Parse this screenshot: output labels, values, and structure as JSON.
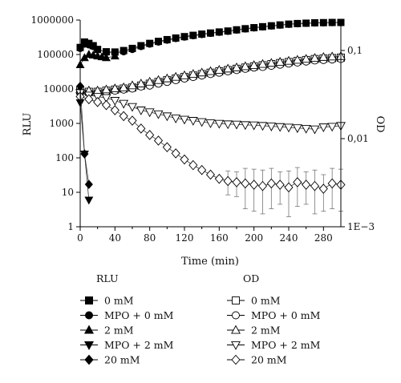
{
  "chart_data": {
    "type": "scatter",
    "title": "",
    "xlabel": "Time (min)",
    "ylabel": "RLU",
    "y2label": "OD",
    "xlim": [
      0,
      300
    ],
    "ylim": [
      1,
      1000000
    ],
    "y2lim": [
      0.001,
      0.2
    ],
    "yscale": "log",
    "y2scale": "log",
    "xticks": [
      "0",
      "40",
      "80",
      "120",
      "160",
      "200",
      "240",
      "280"
    ],
    "yticks": [
      "1",
      "10",
      "100",
      "1000",
      "10000",
      "100000",
      "1000000"
    ],
    "y2ticks": [
      "1E−3",
      "0,01",
      "0,1"
    ],
    "legend_placement": "below",
    "legend_groups": [
      "RLU",
      "OD"
    ],
    "series": [
      {
        "name": "0 mM",
        "group": "RLU",
        "axis": "left",
        "marker": "square",
        "filled": true,
        "x": [
          0,
          5,
          10,
          15,
          20,
          30,
          40,
          50,
          60,
          70,
          80,
          90,
          100,
          110,
          120,
          130,
          140,
          150,
          160,
          170,
          180,
          190,
          200,
          210,
          220,
          230,
          240,
          250,
          260,
          270,
          280,
          290,
          300
        ],
        "y": [
          160000,
          230000,
          210000,
          180000,
          140000,
          120000,
          118000,
          130000,
          150000,
          180000,
          210000,
          240000,
          270000,
          300000,
          330000,
          360000,
          390000,
          420000,
          450000,
          480000,
          520000,
          560000,
          600000,
          640000,
          680000,
          720000,
          760000,
          790000,
          810000,
          830000,
          840000,
          850000,
          850000
        ]
      },
      {
        "name": "MPO + 0 mM",
        "group": "RLU",
        "axis": "left",
        "marker": "circle",
        "filled": true,
        "x": [
          0,
          5,
          10,
          15,
          20,
          30,
          40,
          50,
          60,
          70,
          80,
          90,
          100,
          110,
          120,
          130,
          140,
          150,
          160,
          170,
          180,
          190,
          200,
          210,
          220,
          230,
          240,
          250,
          260,
          270,
          280,
          290,
          300
        ],
        "y": [
          150000,
          200000,
          190000,
          170000,
          140000,
          115000,
          110000,
          120000,
          140000,
          170000,
          200000,
          230000,
          260000,
          290000,
          320000,
          350000,
          380000,
          410000,
          440000,
          470000,
          510000,
          550000,
          590000,
          630000,
          670000,
          710000,
          750000,
          780000,
          800000,
          820000,
          830000,
          840000,
          840000
        ]
      },
      {
        "name": "2 mM",
        "group": "RLU",
        "axis": "left",
        "marker": "triangle-up",
        "filled": true,
        "x": [
          0,
          5,
          10,
          15,
          20,
          25,
          30,
          40
        ],
        "y": [
          50000,
          80000,
          100000,
          95000,
          90000,
          85000,
          80000,
          90000
        ]
      },
      {
        "name": "MPO + 2 mM",
        "group": "RLU",
        "axis": "left",
        "marker": "triangle-down",
        "filled": true,
        "x": [
          0,
          5,
          10
        ],
        "y": [
          4000,
          130,
          6
        ]
      },
      {
        "name": "20 mM",
        "group": "RLU",
        "axis": "left",
        "marker": "diamond",
        "filled": true,
        "x": [
          0,
          5,
          10
        ],
        "y": [
          12000,
          130,
          17
        ]
      },
      {
        "name": "0 mM",
        "group": "OD",
        "axis": "right",
        "marker": "square",
        "filled": false,
        "x": [
          0,
          10,
          20,
          30,
          40,
          50,
          60,
          70,
          80,
          90,
          100,
          110,
          120,
          130,
          140,
          150,
          160,
          170,
          180,
          190,
          200,
          210,
          220,
          230,
          240,
          250,
          260,
          270,
          280,
          290,
          300
        ],
        "y": [
          0.035,
          0.034,
          0.034,
          0.035,
          0.036,
          0.037,
          0.038,
          0.04,
          0.042,
          0.044,
          0.046,
          0.048,
          0.05,
          0.052,
          0.054,
          0.056,
          0.058,
          0.06,
          0.062,
          0.064,
          0.066,
          0.068,
          0.07,
          0.072,
          0.074,
          0.076,
          0.078,
          0.08,
          0.081,
          0.082,
          0.083
        ]
      },
      {
        "name": "MPO + 0 mM",
        "group": "OD",
        "axis": "right",
        "marker": "circle",
        "filled": false,
        "x": [
          0,
          10,
          20,
          30,
          40,
          50,
          60,
          70,
          80,
          90,
          100,
          110,
          120,
          130,
          140,
          150,
          160,
          170,
          180,
          190,
          200,
          210,
          220,
          230,
          240,
          250,
          260,
          270,
          280,
          290,
          300
        ],
        "y": [
          0.034,
          0.033,
          0.033,
          0.034,
          0.035,
          0.036,
          0.037,
          0.039,
          0.04,
          0.042,
          0.044,
          0.046,
          0.048,
          0.05,
          0.052,
          0.054,
          0.056,
          0.058,
          0.06,
          0.062,
          0.064,
          0.065,
          0.067,
          0.069,
          0.071,
          0.073,
          0.075,
          0.077,
          0.078,
          0.079,
          0.08
        ]
      },
      {
        "name": "2 mM",
        "group": "OD",
        "axis": "right",
        "marker": "triangle-up",
        "filled": false,
        "x": [
          0,
          10,
          20,
          30,
          40,
          50,
          60,
          70,
          80,
          90,
          100,
          110,
          120,
          130,
          140,
          150,
          160,
          170,
          180,
          190,
          200,
          210,
          220,
          230,
          240,
          250,
          260,
          270,
          280,
          290,
          300
        ],
        "y": [
          0.036,
          0.035,
          0.035,
          0.036,
          0.037,
          0.038,
          0.04,
          0.042,
          0.044,
          0.046,
          0.048,
          0.05,
          0.052,
          0.054,
          0.056,
          0.058,
          0.06,
          0.062,
          0.064,
          0.066,
          0.068,
          0.07,
          0.072,
          0.074,
          0.076,
          0.078,
          0.08,
          0.082,
          0.084,
          0.085,
          0.086
        ]
      },
      {
        "name": "MPO + 2 mM",
        "group": "OD",
        "axis": "right",
        "marker": "triangle-down",
        "filled": false,
        "x": [
          0,
          10,
          20,
          30,
          40,
          50,
          60,
          70,
          80,
          90,
          100,
          110,
          120,
          130,
          140,
          150,
          160,
          170,
          180,
          190,
          200,
          210,
          220,
          230,
          240,
          250,
          260,
          270,
          280,
          290,
          300
        ],
        "y": [
          0.033,
          0.031,
          0.03,
          0.029,
          0.027,
          0.025,
          0.023,
          0.021,
          0.02,
          0.019,
          0.018,
          0.017,
          0.0165,
          0.016,
          0.0155,
          0.015,
          0.0148,
          0.0146,
          0.0145,
          0.0143,
          0.0142,
          0.014,
          0.0138,
          0.0136,
          0.0134,
          0.0132,
          0.013,
          0.0128,
          0.0135,
          0.0137,
          0.014
        ]
      },
      {
        "name": "20 mM",
        "group": "OD",
        "axis": "right",
        "marker": "diamond",
        "filled": false,
        "x": [
          0,
          10,
          20,
          30,
          40,
          50,
          60,
          70,
          80,
          90,
          100,
          110,
          120,
          130,
          140,
          150,
          160,
          170,
          180,
          190,
          200,
          210,
          220,
          230,
          240,
          250,
          260,
          270,
          280,
          290,
          300
        ],
        "y": [
          0.03,
          0.028,
          0.026,
          0.024,
          0.021,
          0.018,
          0.016,
          0.013,
          0.011,
          0.0095,
          0.008,
          0.0068,
          0.0058,
          0.005,
          0.0044,
          0.0039,
          0.0035,
          0.0033,
          0.0032,
          0.0031,
          0.003,
          0.0029,
          0.0031,
          0.003,
          0.0028,
          0.0032,
          0.003,
          0.0029,
          0.0027,
          0.0031,
          0.003
        ],
        "err_from_x": 170,
        "err": [
          0,
          0,
          0,
          0,
          0,
          0,
          0,
          0,
          0,
          0,
          0,
          0,
          0,
          0,
          0,
          0,
          0,
          0.001,
          0.001,
          0.0015,
          0.0015,
          0.0015,
          0.0015,
          0.0012,
          0.0015,
          0.0015,
          0.0012,
          0.0015,
          0.0012,
          0.0015,
          0.0015
        ]
      }
    ]
  }
}
